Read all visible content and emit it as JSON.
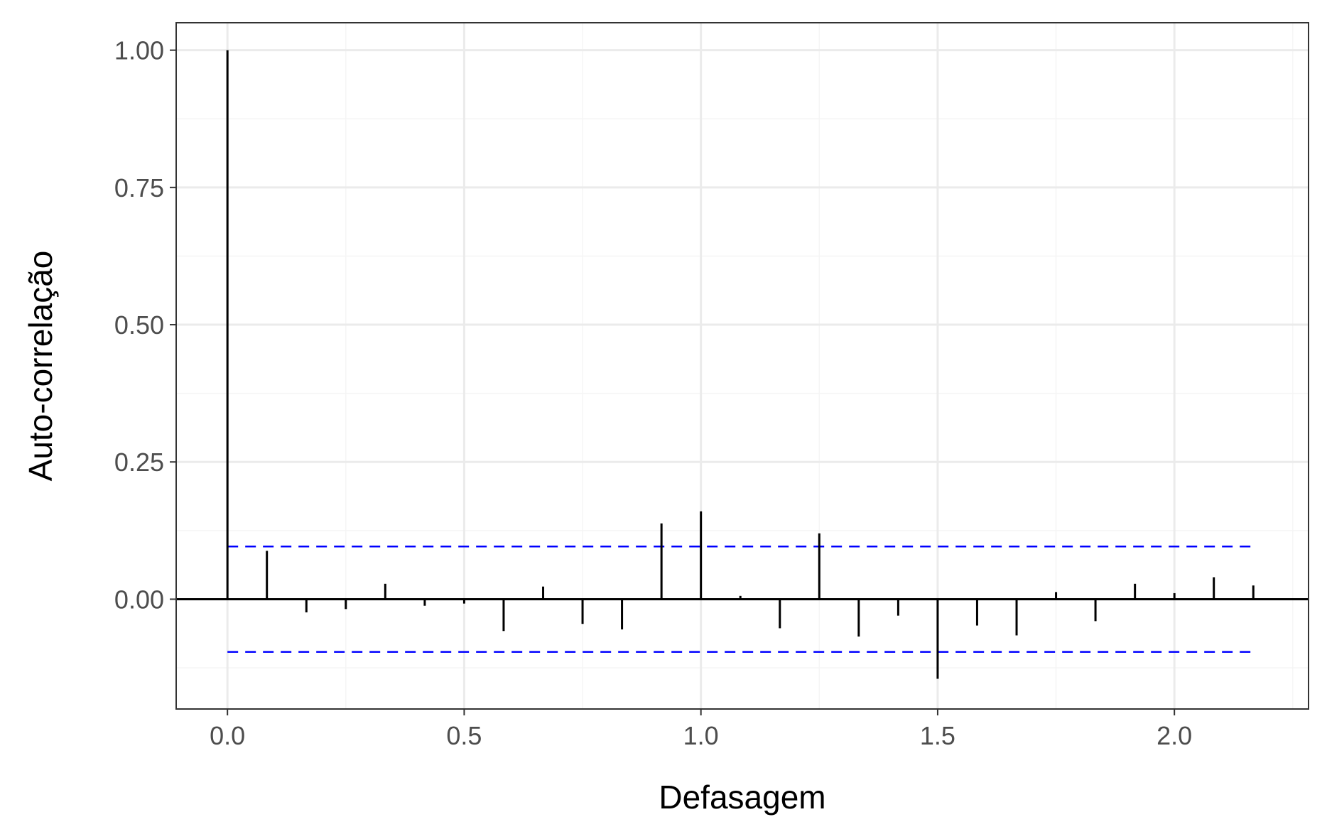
{
  "chart_data": {
    "type": "bar",
    "subtype": "acf",
    "xlabel": "Defasagem",
    "ylabel": "Auto-correlação",
    "xlim": [
      -0.1083,
      2.2833
    ],
    "ylim": [
      -0.2,
      1.05
    ],
    "x_ticks": [
      {
        "value": 0.0,
        "label": "0.0"
      },
      {
        "value": 0.5,
        "label": "0.5"
      },
      {
        "value": 1.0,
        "label": "1.0"
      },
      {
        "value": 1.5,
        "label": "1.5"
      },
      {
        "value": 2.0,
        "label": "2.0"
      }
    ],
    "y_ticks": [
      {
        "value": 0.0,
        "label": "0.00"
      },
      {
        "value": 0.25,
        "label": "0.25"
      },
      {
        "value": 0.5,
        "label": "0.50"
      },
      {
        "value": 0.75,
        "label": "0.75"
      },
      {
        "value": 1.0,
        "label": "1.00"
      }
    ],
    "x": [
      0.0,
      0.0833,
      0.1667,
      0.25,
      0.3333,
      0.4167,
      0.5,
      0.5833,
      0.6667,
      0.75,
      0.8333,
      0.9167,
      1.0,
      1.0833,
      1.1667,
      1.25,
      1.3333,
      1.4167,
      1.5,
      1.5833,
      1.6667,
      1.75,
      1.8333,
      1.9167,
      2.0,
      2.0833,
      2.1667
    ],
    "values": [
      1.0,
      0.088,
      -0.024,
      -0.018,
      0.028,
      -0.012,
      -0.008,
      -0.058,
      0.023,
      -0.045,
      -0.055,
      0.138,
      0.16,
      0.006,
      -0.053,
      0.12,
      -0.068,
      -0.03,
      -0.145,
      -0.048,
      -0.066,
      0.013,
      -0.04,
      0.028,
      0.011,
      0.04,
      0.025
    ],
    "confidence_band": 0.096,
    "colors": {
      "bars": "#000000",
      "zero_line": "#000000",
      "confidence": "#0000ff",
      "grid_major": "#ebebeb",
      "grid_minor": "#f5f5f5",
      "panel_border": "#333333"
    },
    "grid": true,
    "legend": "none"
  }
}
